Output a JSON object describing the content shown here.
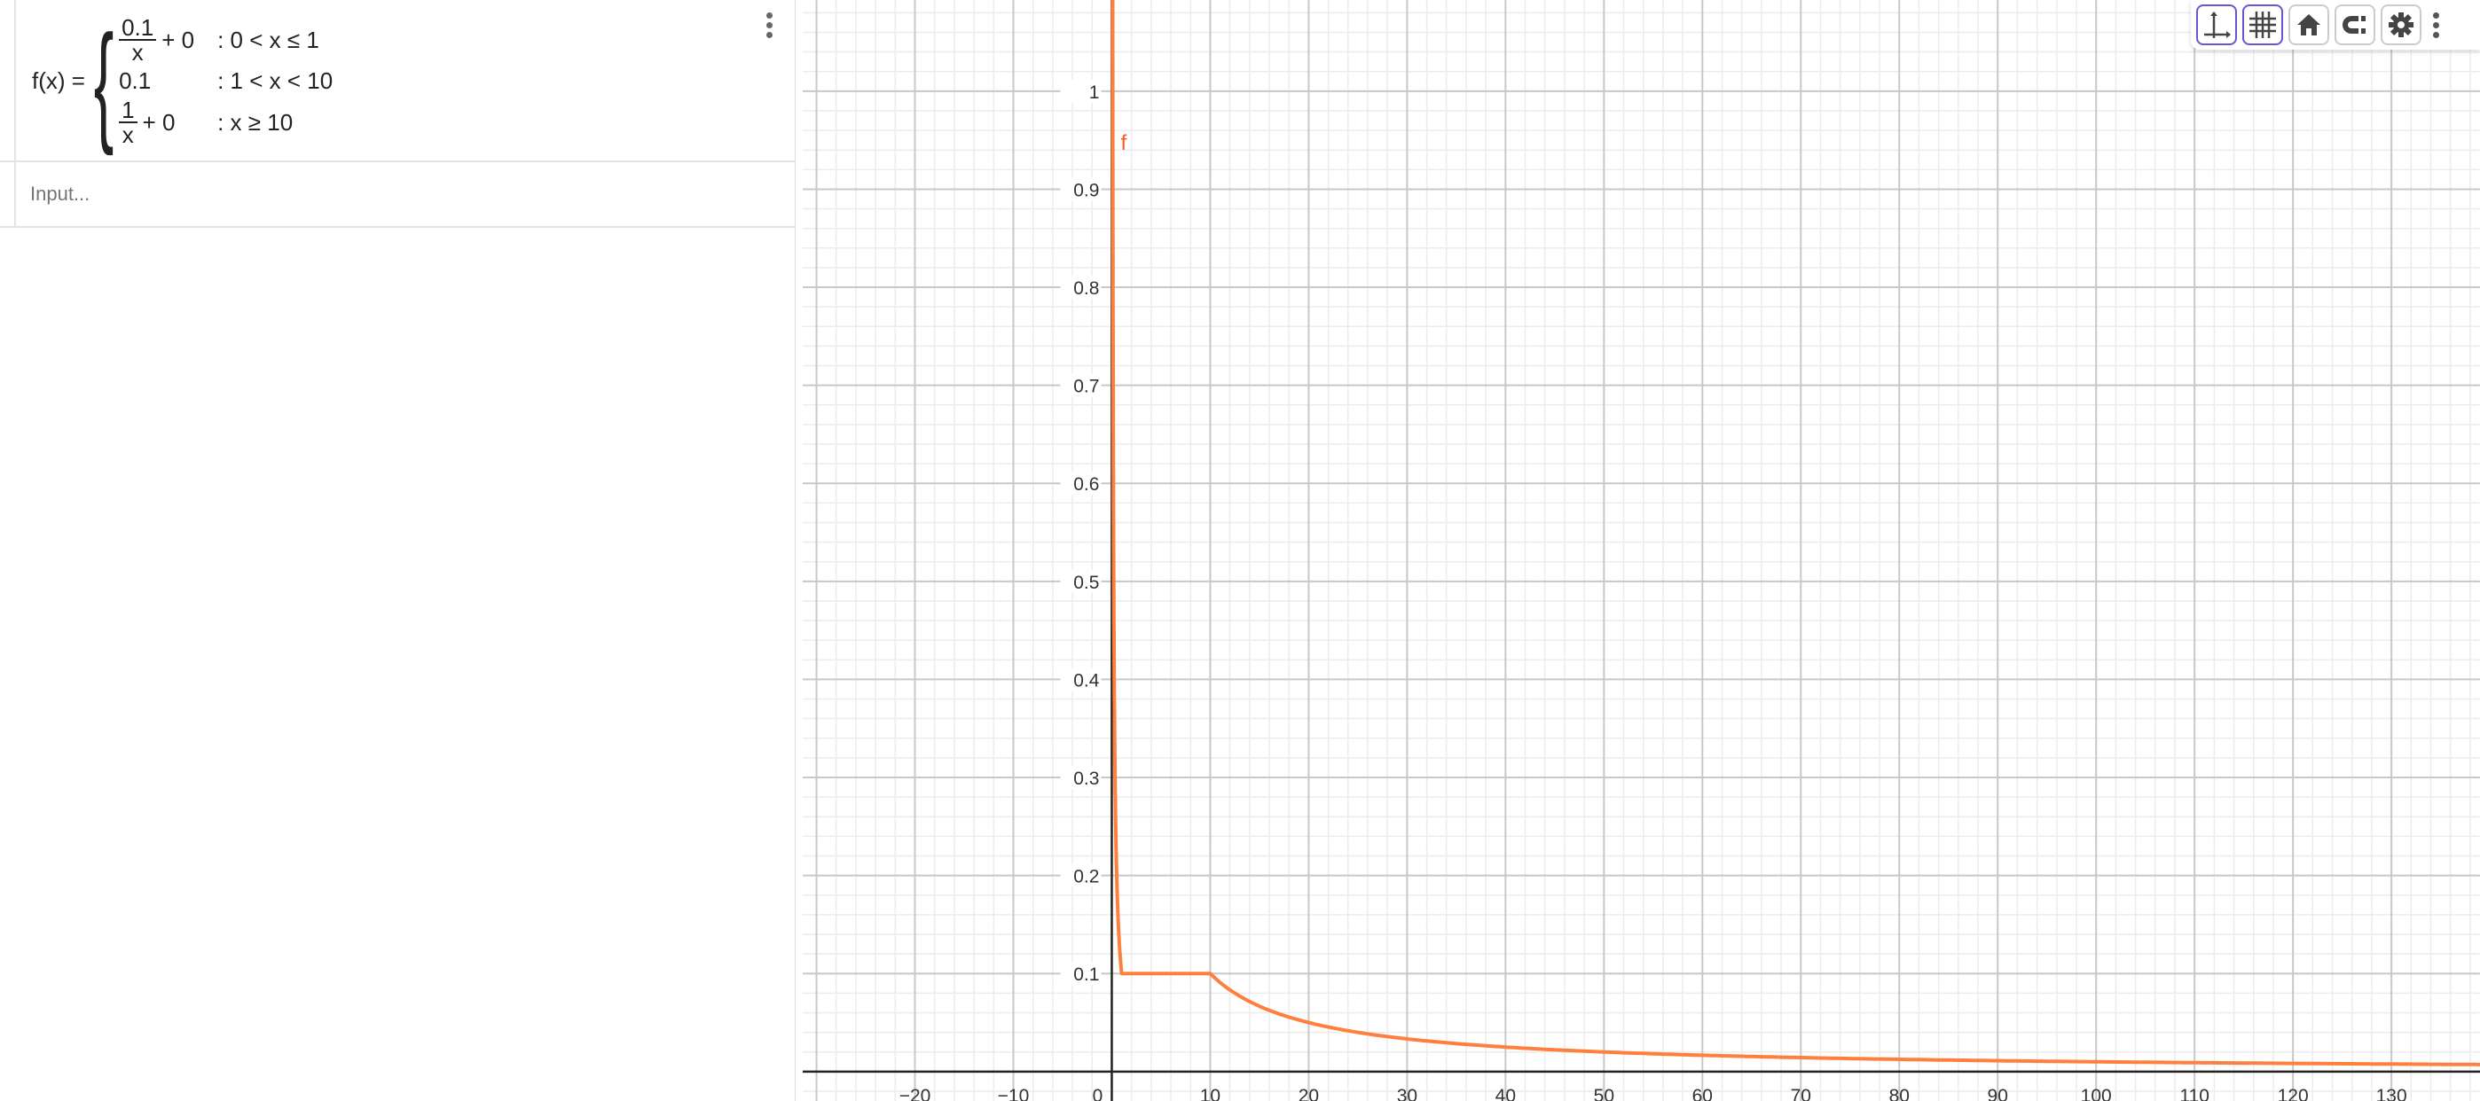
{
  "algebra": {
    "formula": {
      "lhs": "f(x) =",
      "cases": [
        {
          "num": "0.1",
          "den": "x",
          "rest": "+ 0",
          "cond": ": 0 < x ≤ 1"
        },
        {
          "value": "0.1",
          "cond": ": 1 < x < 10"
        },
        {
          "num": "1",
          "den": "x",
          "rest": "+ 0",
          "cond": ": x ≥ 10"
        }
      ]
    },
    "input_placeholder": "Input..."
  },
  "toolbar": {
    "icons": [
      "axes-icon",
      "grid-icon",
      "home-icon",
      "magnet-icon",
      "gear-icon"
    ],
    "active": [
      "axes-icon",
      "grid-icon"
    ]
  },
  "chart_data": {
    "type": "line",
    "function_label": "f",
    "pieces": [
      {
        "expr": "0.1/x + 0",
        "domain": "0 < x ≤ 1"
      },
      {
        "expr": "0.1",
        "domain": "1 < x < 10"
      },
      {
        "expr": "1/x + 0",
        "domain": "x ≥ 10"
      }
    ],
    "xlim": [
      -31.4,
      139
    ],
    "ylim": [
      -0.03,
      1.093
    ],
    "x_ticks": [
      "−20",
      "−10",
      "0",
      "10",
      "20",
      "30",
      "40",
      "50",
      "60",
      "70",
      "80",
      "90",
      "100",
      "110",
      "120",
      "130"
    ],
    "x_tick_values": [
      -20,
      -10,
      0,
      10,
      20,
      30,
      40,
      50,
      60,
      70,
      80,
      90,
      100,
      110,
      120,
      130
    ],
    "y_ticks": [
      "0.1",
      "0.2",
      "0.3",
      "0.4",
      "0.5",
      "0.6",
      "0.7",
      "0.8",
      "0.9",
      "1"
    ],
    "y_tick_values": [
      0.1,
      0.2,
      0.3,
      0.4,
      0.5,
      0.6,
      0.7,
      0.8,
      0.9,
      1
    ],
    "grid": true,
    "major_step": {
      "x": 10,
      "y": 0.1
    },
    "minor_step": {
      "x": 2,
      "y": 0.02
    },
    "colors": {
      "curve": "#ff7f3f",
      "label": "#ff5a1f",
      "axis": "#222222",
      "major_grid": "#c8c8c8",
      "minor_grid": "#ececec"
    }
  }
}
